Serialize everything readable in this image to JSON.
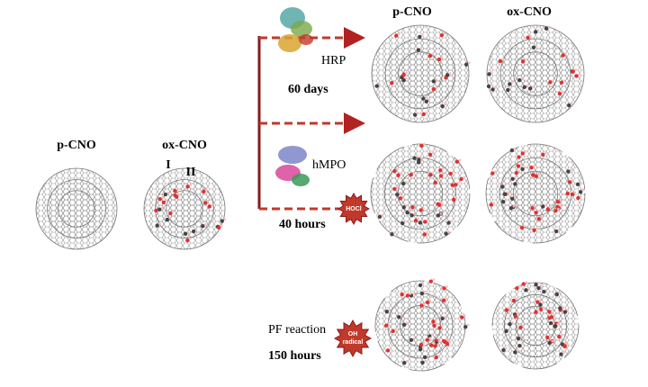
{
  "left": {
    "pristine": "p-CNO",
    "oxidized": "ox-CNO",
    "sites": [
      "I",
      "II"
    ]
  },
  "columns": [
    "p-CNO",
    "ox-CNO"
  ],
  "conditions": [
    {
      "enzyme": "HRP",
      "duration": "60 days"
    },
    {
      "enzyme": "hMPO",
      "oxidant": "HOCl",
      "duration": "40 hours"
    },
    {
      "reaction": "PF reaction",
      "oxidant_lines": [
        "OH",
        "radical"
      ],
      "duration": "150 hours"
    }
  ]
}
